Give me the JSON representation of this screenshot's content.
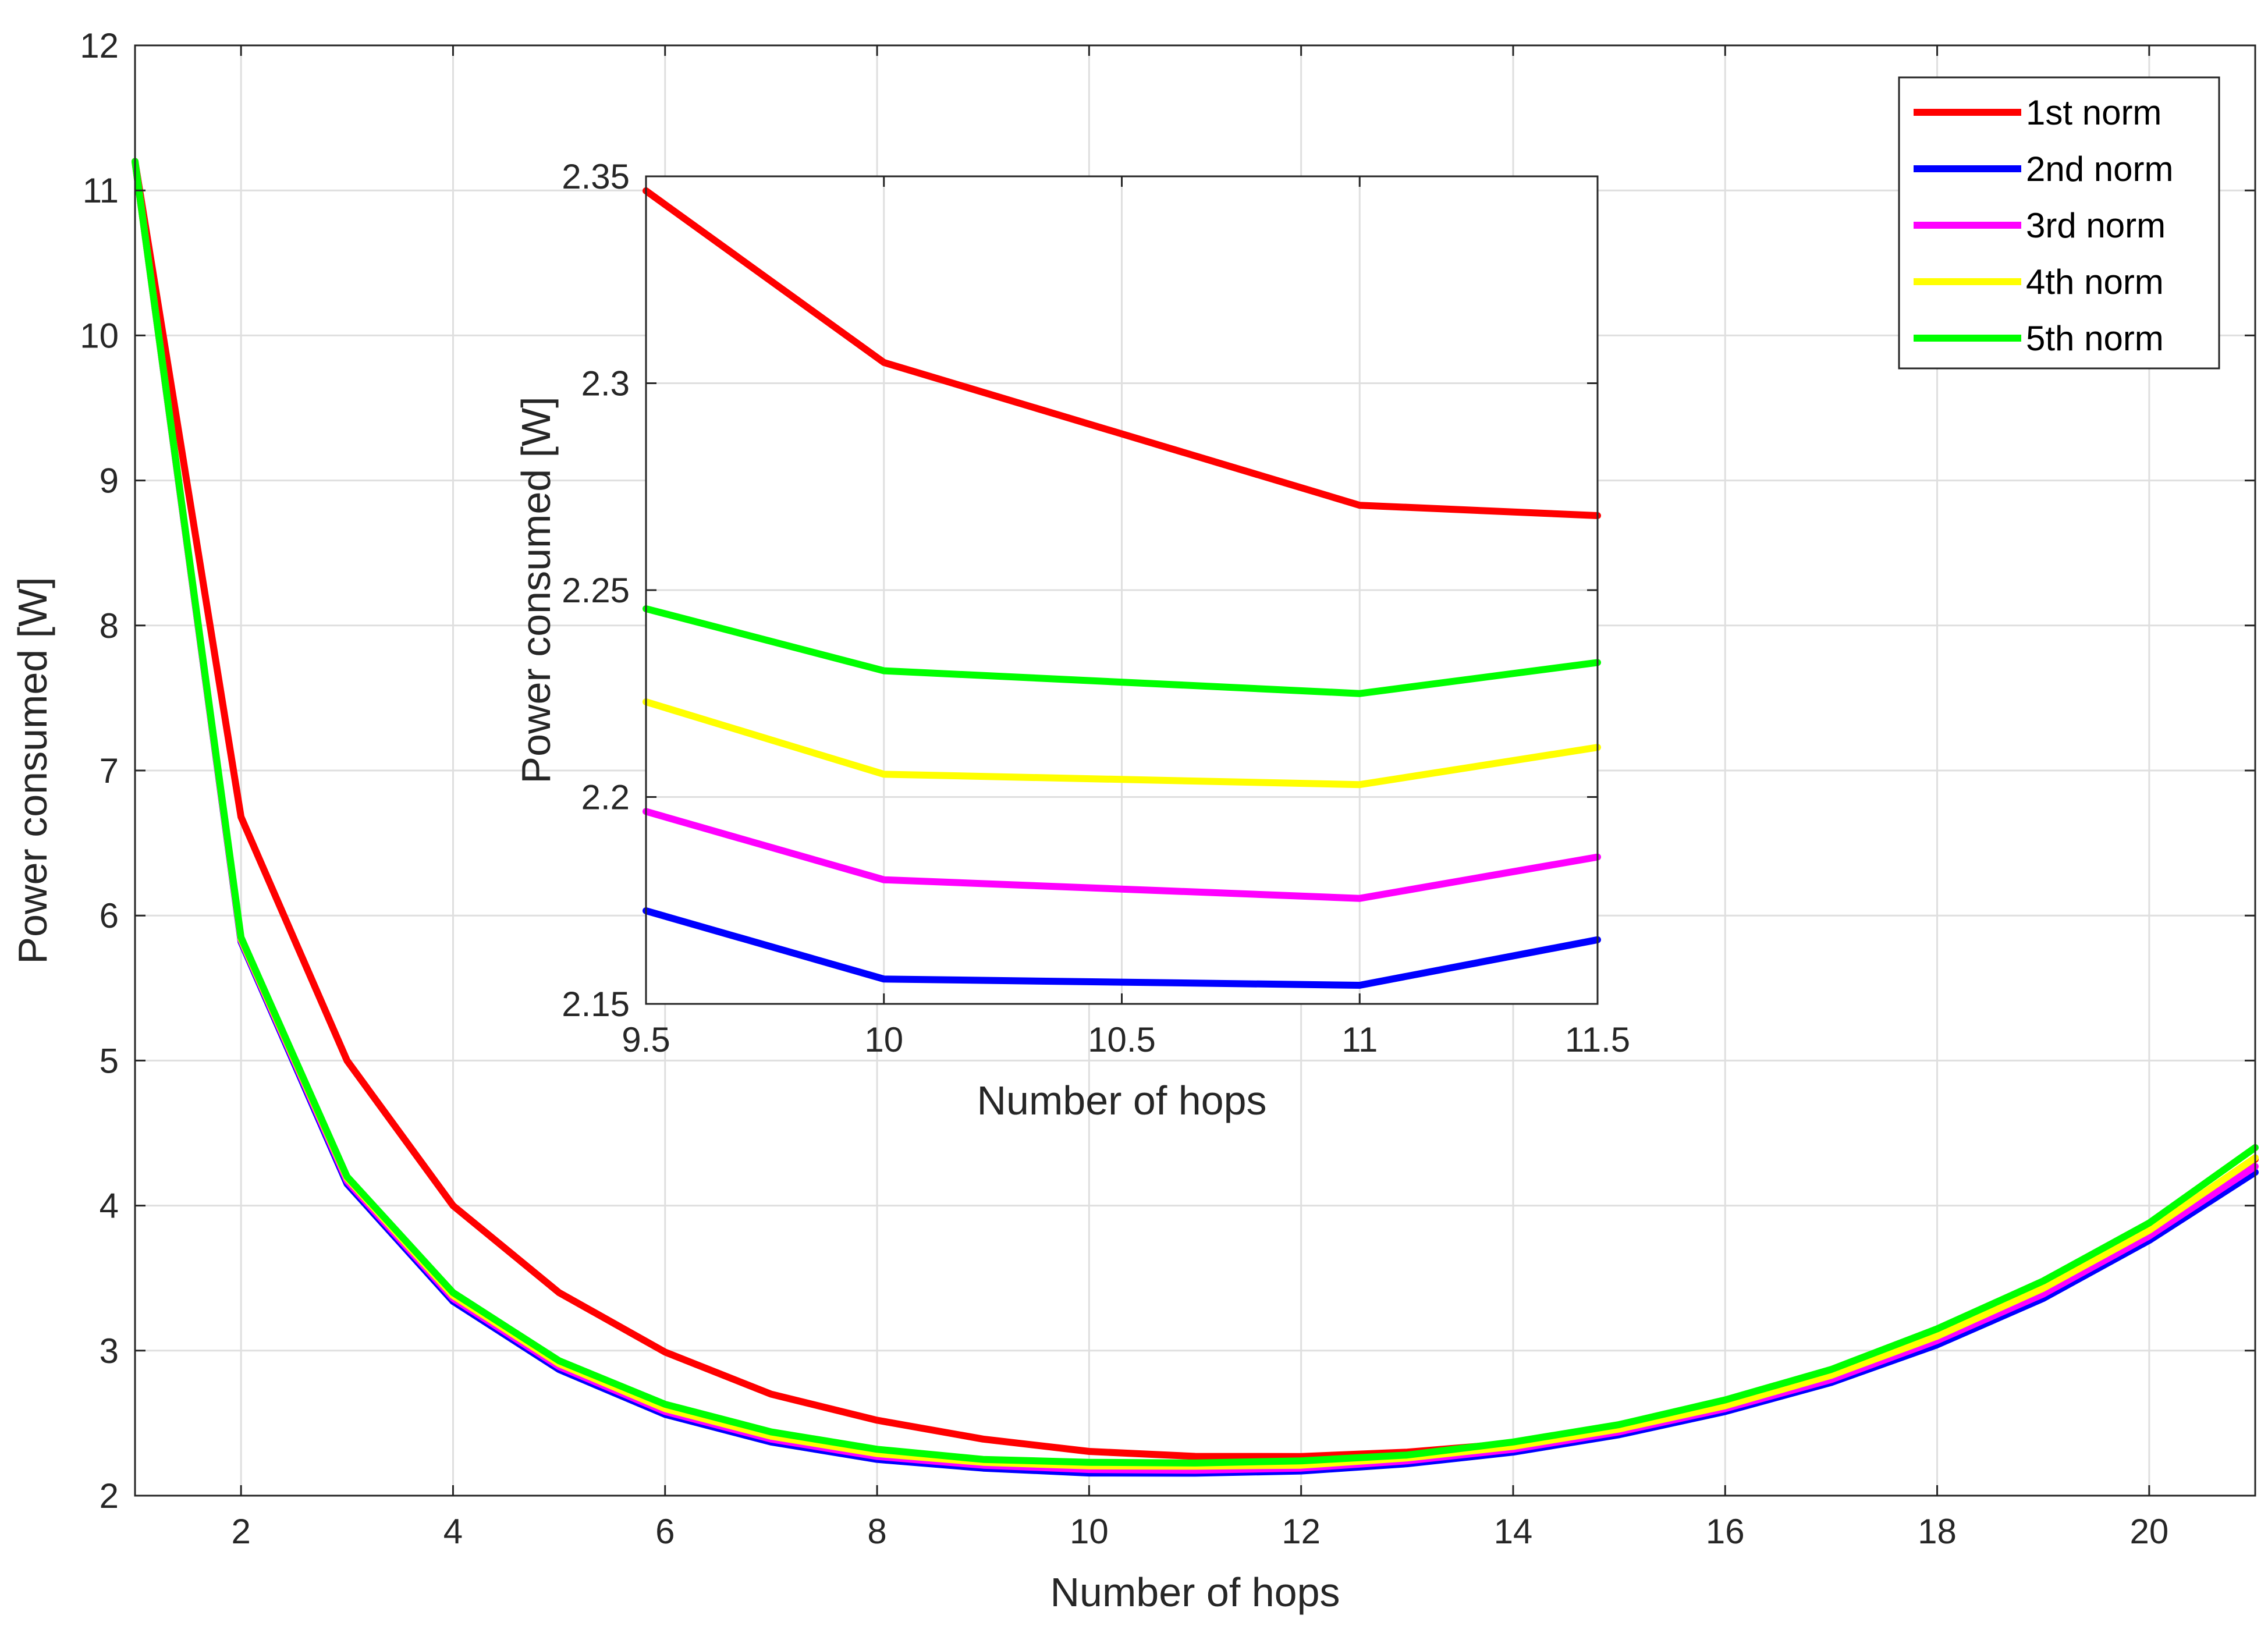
{
  "chart_data": {
    "type": "line",
    "xlabel": "Number of hops",
    "ylabel": "Power consumed [W]",
    "xlim": [
      1,
      21
    ],
    "ylim": [
      2,
      12
    ],
    "xticks": [
      2,
      4,
      6,
      8,
      10,
      12,
      14,
      16,
      18,
      20
    ],
    "yticks": [
      2,
      3,
      4,
      5,
      6,
      7,
      8,
      9,
      10,
      11,
      12
    ],
    "grid": true,
    "legend_position": "top-right",
    "x": [
      1,
      2,
      3,
      4,
      5,
      6,
      7,
      8,
      9,
      10,
      11,
      12,
      13,
      14,
      15,
      16,
      17,
      18,
      19,
      20,
      21
    ],
    "series": [
      {
        "name": "1st norm",
        "color": "#ff0000",
        "values": [
          11.2,
          6.68,
          5.0,
          4.0,
          3.4,
          2.99,
          2.7,
          2.52,
          2.39,
          2.305,
          2.271,
          2.27,
          2.3,
          2.36,
          2.46,
          2.62,
          2.82,
          3.08,
          3.41,
          3.82,
          4.32
        ]
      },
      {
        "name": "2nd norm",
        "color": "#0000ff",
        "values": [
          11.2,
          5.82,
          4.15,
          3.34,
          2.87,
          2.56,
          2.37,
          2.25,
          2.19,
          2.156,
          2.155,
          2.17,
          2.22,
          2.3,
          2.42,
          2.58,
          2.78,
          3.04,
          3.36,
          3.76,
          4.23
        ]
      },
      {
        "name": "3rd norm",
        "color": "#ff00ff",
        "values": [
          11.2,
          5.83,
          4.17,
          3.36,
          2.89,
          2.58,
          2.39,
          2.27,
          2.21,
          2.18,
          2.175,
          2.19,
          2.24,
          2.32,
          2.44,
          2.6,
          2.8,
          3.07,
          3.39,
          3.79,
          4.27
        ]
      },
      {
        "name": "4th norm",
        "color": "#ffff00",
        "values": [
          11.2,
          5.84,
          4.19,
          3.38,
          2.91,
          2.6,
          2.41,
          2.29,
          2.23,
          2.205,
          2.203,
          2.21,
          2.26,
          2.34,
          2.46,
          2.62,
          2.83,
          3.1,
          3.43,
          3.83,
          4.33
        ]
      },
      {
        "name": "5th norm",
        "color": "#00ff00",
        "values": [
          11.2,
          5.85,
          4.2,
          3.4,
          2.93,
          2.63,
          2.44,
          2.32,
          2.25,
          2.23,
          2.225,
          2.24,
          2.28,
          2.37,
          2.49,
          2.66,
          2.87,
          3.15,
          3.48,
          3.88,
          4.4
        ]
      }
    ],
    "inset": {
      "xlabel": "Number of hops",
      "ylabel": "Power consumed [W]",
      "xlim": [
        9.5,
        11.5
      ],
      "ylim": [
        2.15,
        2.35
      ],
      "xticks": [
        "9.5",
        "10",
        "10.5",
        "11",
        "11.5"
      ],
      "yticks": [
        "2.15",
        "2.2",
        "2.25",
        "2.3",
        "2.35"
      ],
      "x": [
        9.5,
        10,
        11,
        11.5
      ],
      "series": [
        {
          "name": "1st norm",
          "color": "#ff0000",
          "values": [
            2.3465,
            2.305,
            2.2705,
            2.268
          ]
        },
        {
          "name": "2nd norm",
          "color": "#0000ff",
          "values": [
            2.1725,
            2.156,
            2.1545,
            2.1655
          ]
        },
        {
          "name": "3rd norm",
          "color": "#ff00ff",
          "values": [
            2.1965,
            2.18,
            2.1755,
            2.1855
          ]
        },
        {
          "name": "4th norm",
          "color": "#ffff00",
          "values": [
            2.223,
            2.2055,
            2.203,
            2.212
          ]
        },
        {
          "name": "5th norm",
          "color": "#00ff00",
          "values": [
            2.2455,
            2.2305,
            2.225,
            2.2325
          ]
        }
      ]
    }
  }
}
